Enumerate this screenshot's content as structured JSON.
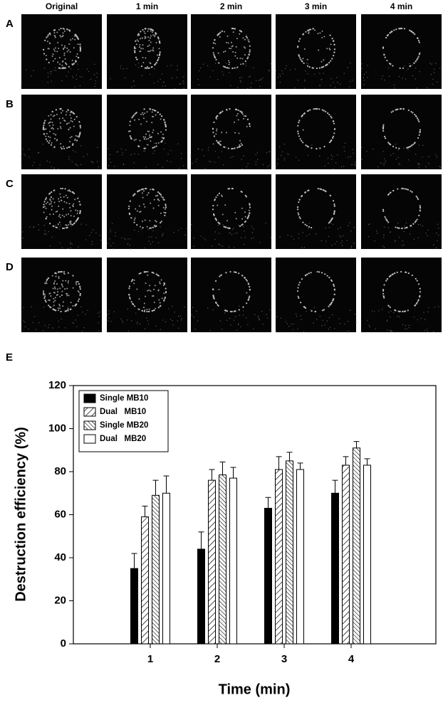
{
  "panels": {
    "columns": [
      "Original",
      "1 min",
      "2 min",
      "3 min",
      "4 min"
    ],
    "rows": [
      "A",
      "B",
      "C",
      "D"
    ]
  },
  "chart_data": {
    "type": "bar",
    "panel_label": "E",
    "x_label": "Time (min)",
    "y_label": "Destruction efficiency (%)",
    "categories": [
      "1",
      "2",
      "3",
      "4"
    ],
    "series": [
      {
        "name": "Single MB10",
        "color": "#000000",
        "hatch": "none",
        "values": [
          35,
          44,
          63,
          70
        ],
        "errors": [
          7,
          8,
          5,
          6
        ]
      },
      {
        "name": "Dual   MB10",
        "color": "#ffffff",
        "hatch": "/",
        "values": [
          59,
          76,
          81,
          83
        ],
        "errors": [
          5,
          5,
          6,
          4
        ]
      },
      {
        "name": "Single MB20",
        "color": "#ffffff",
        "hatch": "\\",
        "values": [
          69,
          78.5,
          85,
          91
        ],
        "errors": [
          7,
          6,
          4,
          3
        ]
      },
      {
        "name": "Dual   MB20",
        "color": "#ffffff",
        "hatch": "none",
        "values": [
          70,
          77,
          81,
          83
        ],
        "errors": [
          8,
          5,
          3,
          3
        ]
      }
    ],
    "ylim": [
      0,
      120
    ],
    "yticks": [
      0,
      20,
      40,
      60,
      80,
      100,
      120
    ],
    "legend": "upper left"
  }
}
